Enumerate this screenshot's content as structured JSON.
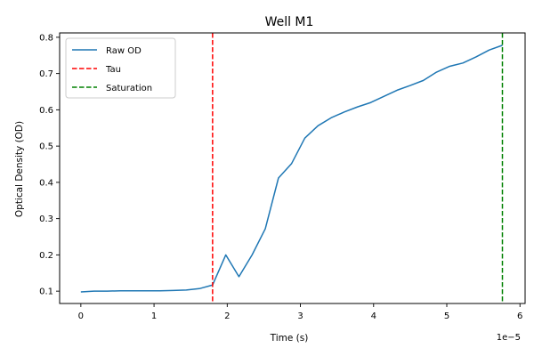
{
  "chart_data": {
    "type": "line",
    "title": "Well M1",
    "xlabel": "Time (s)",
    "ylabel": "Optical Density (OD)",
    "x_offset_label": "1e−5",
    "xlim": [
      -0.29,
      6.07
    ],
    "ylim": [
      0.066,
      0.812
    ],
    "x_ticks": [
      0,
      1,
      2,
      3,
      4,
      5,
      6
    ],
    "x_tick_labels": [
      "0",
      "1",
      "2",
      "3",
      "4",
      "5",
      "6"
    ],
    "y_ticks": [
      0.1,
      0.2,
      0.3,
      0.4,
      0.5,
      0.6,
      0.7,
      0.8
    ],
    "y_tick_labels": [
      "0.1",
      "0.2",
      "0.3",
      "0.4",
      "0.5",
      "0.6",
      "0.7",
      "0.8"
    ],
    "grid": false,
    "legend_position": "top-left",
    "series": [
      {
        "name": "Raw OD",
        "color": "#1f77b4",
        "style": "solid",
        "x": [
          0.0,
          0.18,
          0.36,
          0.54,
          0.72,
          0.9,
          1.08,
          1.26,
          1.44,
          1.62,
          1.8,
          1.98,
          2.16,
          2.34,
          2.52,
          2.7,
          2.88,
          3.06,
          3.24,
          3.42,
          3.6,
          3.78,
          3.96,
          4.14,
          4.32,
          4.5,
          4.68,
          4.86,
          5.04,
          5.22,
          5.4,
          5.58,
          5.76
        ],
        "y": [
          0.098,
          0.1,
          0.1,
          0.101,
          0.101,
          0.101,
          0.101,
          0.102,
          0.103,
          0.107,
          0.117,
          0.2,
          0.14,
          0.2,
          0.272,
          0.412,
          0.452,
          0.522,
          0.556,
          0.578,
          0.594,
          0.608,
          0.62,
          0.637,
          0.654,
          0.667,
          0.681,
          0.704,
          0.72,
          0.729,
          0.746,
          0.765,
          0.778
        ]
      },
      {
        "name": "Tau",
        "color": "#ff0000",
        "style": "dashed",
        "vline_x": 1.8
      },
      {
        "name": "Saturation",
        "color": "#008000",
        "style": "dashed",
        "vline_x": 5.76
      }
    ]
  }
}
